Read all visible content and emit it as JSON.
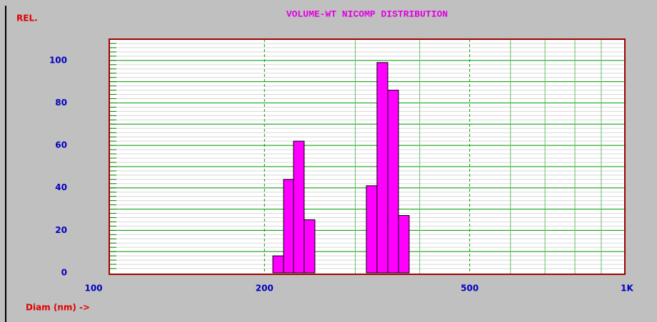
{
  "chart_data": {
    "type": "histogram",
    "title": "VOLUME-WT NICOMP DISTRIBUTION",
    "y_label": "REL.",
    "x_label": "Diam (nm) ->",
    "groups": [
      {
        "bins": [
          207.6,
          217.8,
          227.7,
          238.8,
          250.5
        ],
        "values": [
          8,
          44,
          62,
          25
        ]
      },
      {
        "bins": [
          315.2,
          330.6,
          346.9,
          363.9,
          381.7
        ],
        "values": [
          41,
          99,
          86,
          27
        ]
      }
    ],
    "color": "#ff00ff",
    "log_x": true,
    "xlim": [
      100,
      1000
    ],
    "xticks": [
      100,
      200,
      500,
      {
        "value": 1000,
        "label": "1K"
      }
    ],
    "x_minor_grid": [
      300,
      400,
      600,
      700,
      800,
      900
    ],
    "ylim": [
      0,
      110
    ],
    "yticks": [
      0,
      20,
      40,
      60,
      80,
      100
    ],
    "y_major_grid": [
      10,
      20,
      30,
      40,
      50,
      60,
      70,
      80,
      90,
      100,
      110
    ],
    "y_minor_grid_step": 2
  }
}
